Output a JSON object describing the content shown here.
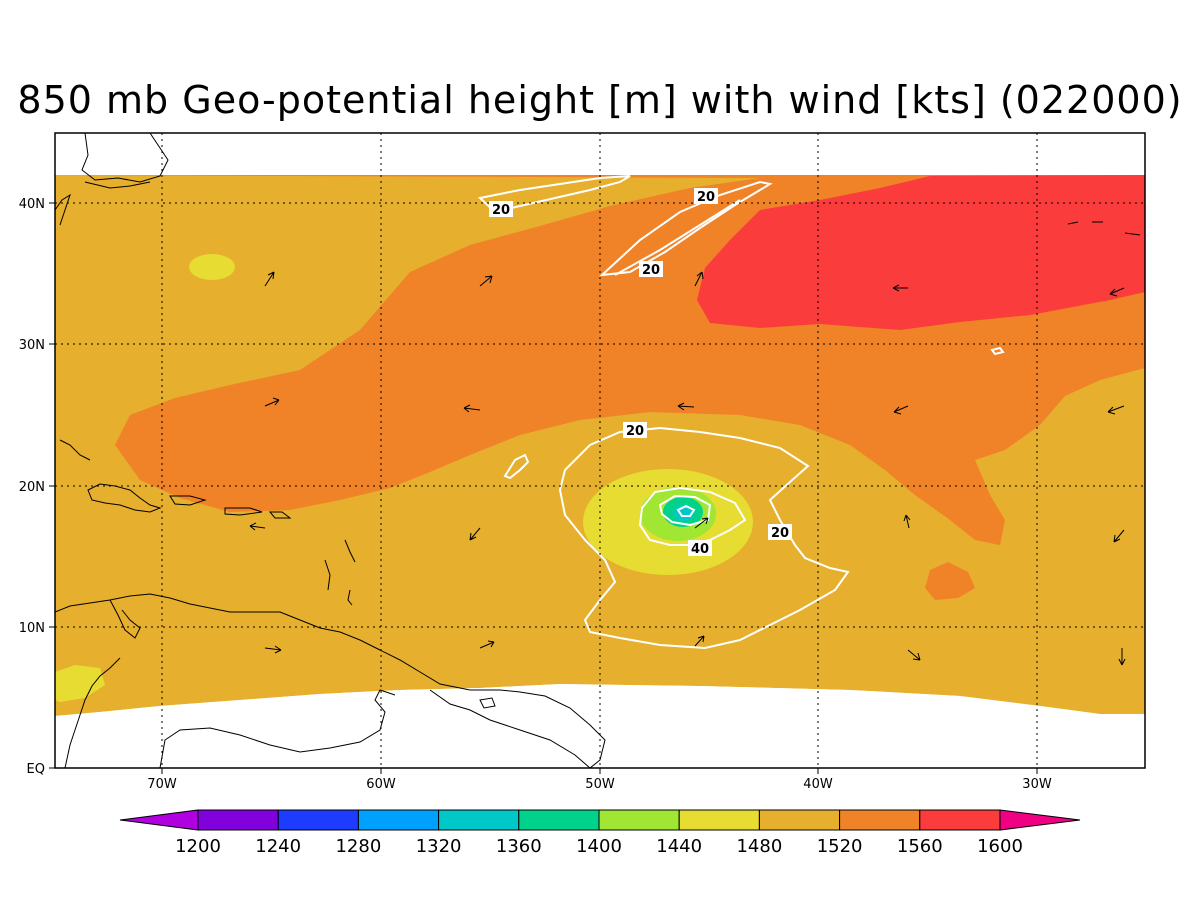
{
  "title": "850 mb Geo-potential height [m] with wind [kts] (022000)",
  "lat_labels": [
    "40N",
    "30N",
    "20N",
    "10N",
    "EQ"
  ],
  "lon_labels": [
    "70W",
    "60W",
    "50W",
    "40W",
    "30W"
  ],
  "contour_labels": [
    "20",
    "20",
    "20",
    "20",
    "20",
    "40"
  ],
  "colorbar": {
    "ticks": [
      "1200",
      "1240",
      "1280",
      "1320",
      "1360",
      "1400",
      "1440",
      "1480",
      "1520",
      "1560",
      "1600"
    ],
    "colors": [
      "#b000e0",
      "#8200dc",
      "#1e3cff",
      "#00a0ff",
      "#00c8c8",
      "#00d28c",
      "#a0e632",
      "#e6dc32",
      "#e6af2d",
      "#f08228",
      "#fa3c3c",
      "#f00082"
    ]
  },
  "colors": {
    "bg_1520": "#e6af2d",
    "band_1560": "#f08228",
    "high_1600": "#fa3c3c",
    "ring_1480": "#e6dc32",
    "ring_1440": "#a0e632",
    "ring_1400": "#00d28c",
    "core_1360": "#00c8c8",
    "wind_contour": "#ffffff"
  }
}
